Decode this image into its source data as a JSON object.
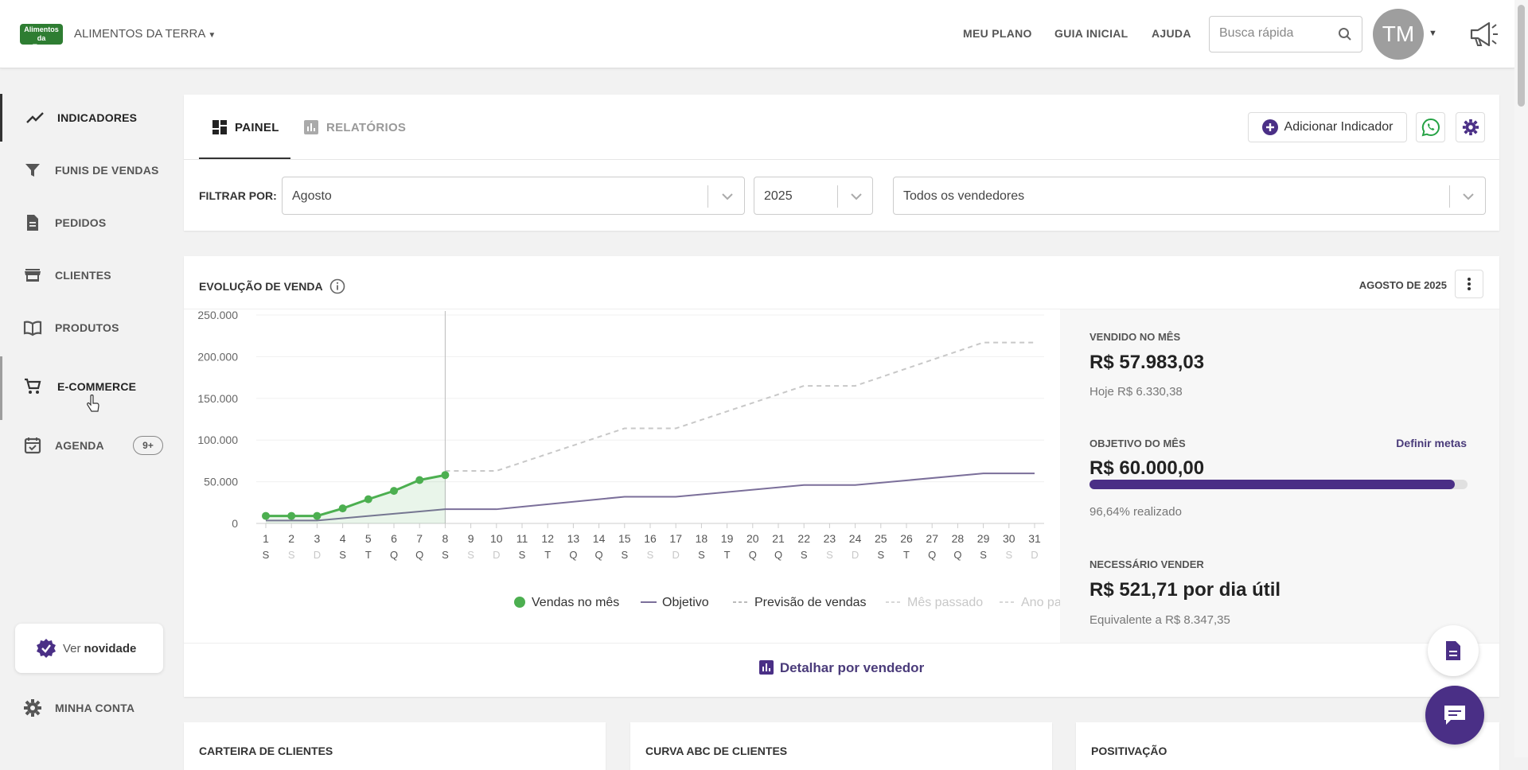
{
  "header": {
    "logo_text": "Alimentos da Terra",
    "company": "ALIMENTOS DA TERRA",
    "nav": [
      "MEU PLANO",
      "GUIA INICIAL",
      "AJUDA"
    ],
    "search_placeholder": "Busca rápida",
    "avatar_initials": "TM"
  },
  "sidebar": {
    "items": [
      {
        "label": "INDICADORES",
        "icon": "trending-up-icon"
      },
      {
        "label": "FUNIS DE VENDAS",
        "icon": "funnel-icon"
      },
      {
        "label": "PEDIDOS",
        "icon": "document-icon"
      },
      {
        "label": "CLIENTES",
        "icon": "store-icon"
      },
      {
        "label": "PRODUTOS",
        "icon": "book-icon"
      },
      {
        "label": "E-COMMERCE",
        "icon": "cart-icon"
      },
      {
        "label": "AGENDA",
        "icon": "calendar-check-icon",
        "badge": "9+"
      }
    ],
    "novidade_prefix": "Ver",
    "novidade_bold": "novidade",
    "account": "MINHA CONTA"
  },
  "tabs": {
    "painel": "PAINEL",
    "relatorios": "RELATÓRIOS",
    "add_indicator": "Adicionar Indicador"
  },
  "filters": {
    "label": "FILTRAR POR:",
    "month": "Agosto",
    "year": "2025",
    "seller": "Todos os vendedores"
  },
  "evolution": {
    "title": "EVOLUÇÃO DE VENDA",
    "period": "AGOSTO DE 2025",
    "detail_link": "Detalhar por vendedor"
  },
  "stats": {
    "sold_label": "VENDIDO NO MÊS",
    "sold_value": "R$ 57.983,03",
    "sold_today": "Hoje R$ 6.330,38",
    "goal_label": "OBJETIVO DO MÊS",
    "goal_link": "Definir metas",
    "goal_value": "R$ 60.000,00",
    "goal_progress": 0.9664,
    "goal_done": "96,64% realizado",
    "need_label": "NECESSÁRIO VENDER",
    "need_value": "R$ 521,71 por dia útil",
    "need_equiv": "Equivalente a R$ 8.347,35"
  },
  "bottom_cards": [
    "CARTEIRA DE CLIENTES",
    "CURVA ABC DE CLIENTES",
    "POSITIVAÇÃO"
  ],
  "colors": {
    "accent": "#4a2f86",
    "sales": "#4caf50",
    "objective": "#7b6f9a",
    "forecast": "#c8c8c8"
  },
  "chart_data": {
    "type": "line",
    "x": [
      1,
      2,
      3,
      4,
      5,
      6,
      7,
      8,
      9,
      10,
      11,
      12,
      13,
      14,
      15,
      16,
      17,
      18,
      19,
      20,
      21,
      22,
      23,
      24,
      25,
      26,
      27,
      28,
      29,
      30,
      31
    ],
    "x_days": [
      "S",
      "S",
      "D",
      "S",
      "T",
      "Q",
      "Q",
      "S",
      "S",
      "D",
      "S",
      "T",
      "Q",
      "Q",
      "S",
      "S",
      "D",
      "S",
      "T",
      "Q",
      "Q",
      "S",
      "S",
      "D",
      "S",
      "T",
      "Q",
      "Q",
      "S",
      "S",
      "D"
    ],
    "weekend_idx": [
      1,
      2,
      8,
      9,
      15,
      16,
      22,
      23,
      29,
      30
    ],
    "y_ticks": [
      "250.000",
      "200.000",
      "150.000",
      "100.000",
      "50.000",
      "0"
    ],
    "ylim": [
      0,
      250000
    ],
    "current_day": 8,
    "series": [
      {
        "name": "Vendas no mês",
        "x": [
          1,
          2,
          3,
          4,
          5,
          6,
          7,
          8
        ],
        "values": [
          9000,
          9000,
          9000,
          18000,
          29000,
          39000,
          52000,
          58000
        ]
      },
      {
        "name": "Objetivo",
        "x": [
          1,
          3,
          8,
          10,
          15,
          17,
          22,
          24,
          29,
          31
        ],
        "values": [
          3500,
          3500,
          17000,
          17000,
          32000,
          32000,
          46000,
          46000,
          60000,
          60000
        ]
      },
      {
        "name": "Previsão de vendas",
        "x": [
          8,
          10,
          15,
          17,
          22,
          24,
          29,
          31
        ],
        "values": [
          63000,
          63000,
          114000,
          114000,
          165000,
          165000,
          217000,
          217000
        ]
      }
    ],
    "legend": [
      "Vendas no mês",
      "Objetivo",
      "Previsão de vendas",
      "Mês passado",
      "Ano passado"
    ]
  }
}
